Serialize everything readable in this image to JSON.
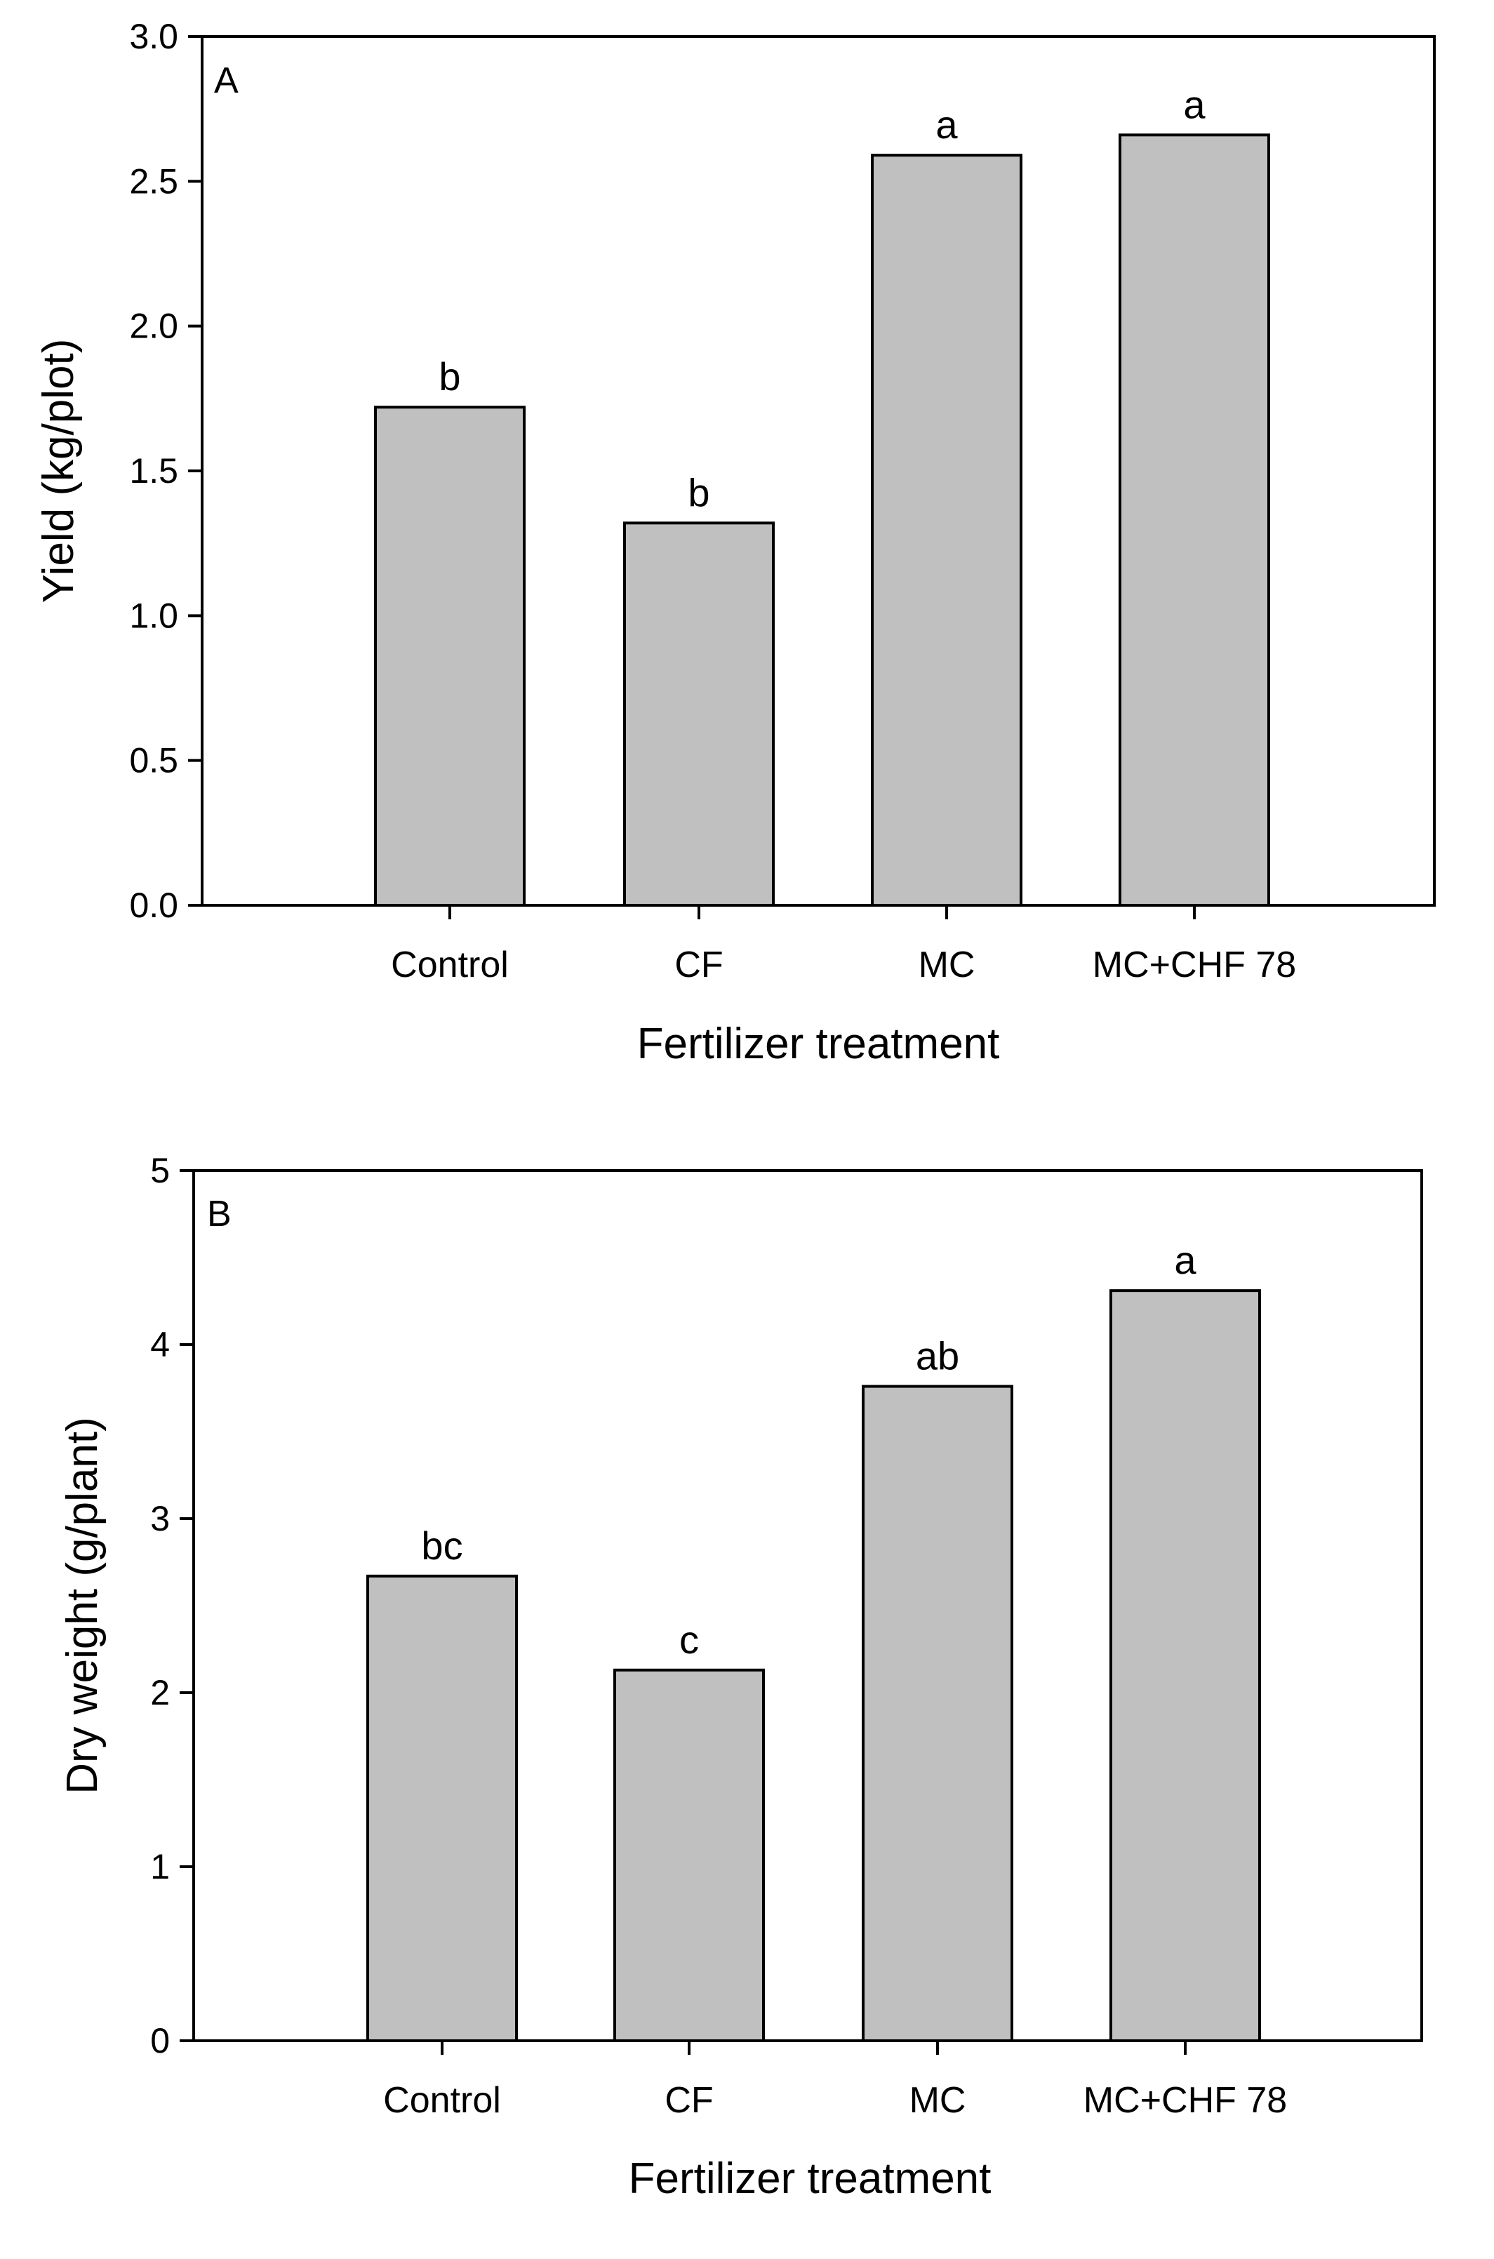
{
  "chart_data": [
    {
      "type": "bar",
      "panel_label": "A",
      "categories": [
        "Control",
        "CF",
        "MC",
        "MC+CHF 78"
      ],
      "values": [
        1.72,
        1.32,
        2.59,
        2.66
      ],
      "significance": [
        "b",
        "b",
        "a",
        "a"
      ],
      "xlabel": "Fertilizer treatment",
      "ylabel": "Yield (kg/plot)",
      "ylim": [
        0,
        3.0
      ],
      "yticks": [
        "0.0",
        "0.5",
        "1.0",
        "1.5",
        "2.0",
        "2.5",
        "3.0"
      ],
      "bar_color": "#c0c0c0",
      "grid": false
    },
    {
      "type": "bar",
      "panel_label": "B",
      "categories": [
        "Control",
        "CF",
        "MC",
        "MC+CHF 78"
      ],
      "values": [
        2.67,
        2.13,
        3.76,
        4.31
      ],
      "significance": [
        "bc",
        "c",
        "ab",
        "a"
      ],
      "xlabel": "Fertilizer treatment",
      "ylabel": "Dry weight (g/plant)",
      "ylim": [
        0,
        5
      ],
      "yticks": [
        "0",
        "1",
        "2",
        "3",
        "4",
        "5"
      ],
      "bar_color": "#c0c0c0",
      "grid": false
    }
  ]
}
